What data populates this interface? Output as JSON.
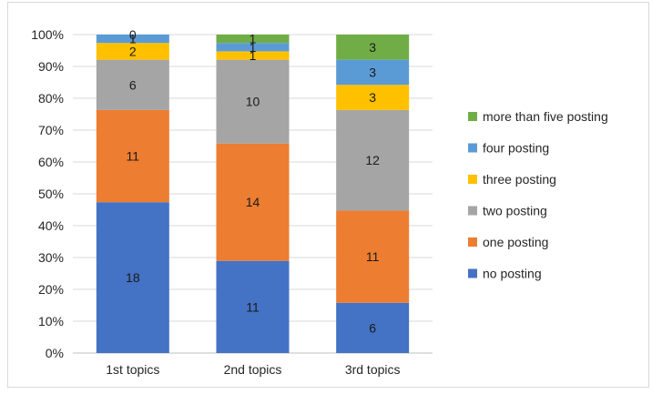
{
  "chart_data": {
    "type": "bar",
    "stacked": "percent",
    "categories": [
      "1st topics",
      "2nd topics",
      "3rd topics"
    ],
    "series": [
      {
        "name": "no posting",
        "color": "#4472c4",
        "values": [
          18,
          11,
          6
        ]
      },
      {
        "name": "one posting",
        "color": "#ed7d31",
        "values": [
          11,
          14,
          11
        ]
      },
      {
        "name": "two posting",
        "color": "#a5a5a5",
        "values": [
          6,
          10,
          12
        ]
      },
      {
        "name": "three posting",
        "color": "#ffc000",
        "values": [
          2,
          1,
          3
        ]
      },
      {
        "name": "four posting",
        "color": "#5b9bd5",
        "values": [
          1,
          1,
          3
        ]
      },
      {
        "name": "more than five posting",
        "color": "#70ad47",
        "values": [
          0,
          1,
          3
        ]
      }
    ],
    "ylim": [
      0,
      100
    ],
    "yticks": [
      "0%",
      "10%",
      "20%",
      "30%",
      "40%",
      "50%",
      "60%",
      "70%",
      "80%",
      "90%",
      "100%"
    ],
    "grid": true,
    "legend": "right"
  }
}
